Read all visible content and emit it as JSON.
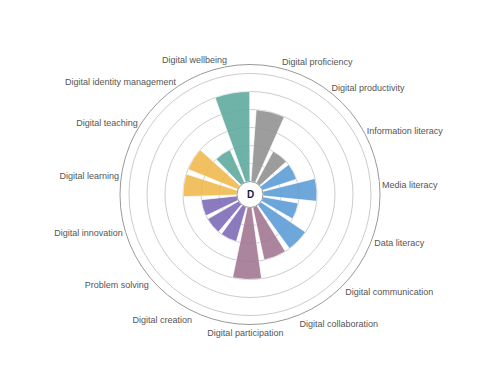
{
  "chart_data": {
    "type": "radial_bar",
    "categories": [
      "Digital wellbeing",
      "Digital proficiency",
      "Digital productivity",
      "Information literacy",
      "Media literacy",
      "Data literacy",
      "Digital communication",
      "Digital collaboration",
      "Digital participation",
      "Digital creation",
      "Problem solving",
      "Digital innovation",
      "Digital learning",
      "Digital teaching",
      "Digital identity management"
    ],
    "values": [
      5,
      4,
      2,
      2,
      3,
      2,
      3,
      3,
      4,
      2,
      2,
      2,
      3,
      3,
      2
    ],
    "colors": [
      "#5BA89C",
      "#909090",
      "#909090",
      "#5B9BD5",
      "#5B9BD5",
      "#5B9BD5",
      "#5B9BD5",
      "#A07490",
      "#A07490",
      "#7B68B5",
      "#7B68B5",
      "#7B68B5",
      "#F0B84B",
      "#F0B84B",
      "#5BA89C"
    ],
    "ylim": [
      0,
      6.5
    ],
    "yticks": [
      1,
      2,
      3,
      4,
      5,
      6
    ],
    "grid": true,
    "tick_labels": "x",
    "annotations": [
      {
        "text": "D"
      }
    ]
  }
}
